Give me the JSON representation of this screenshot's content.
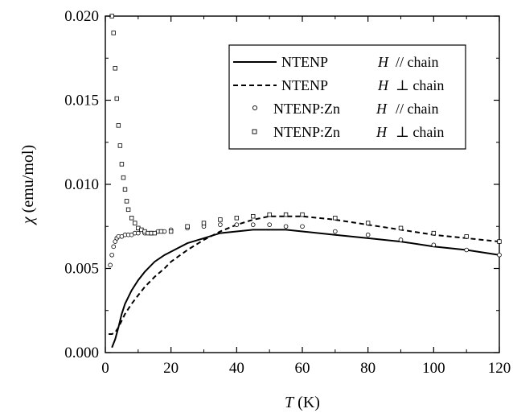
{
  "chart_data": {
    "type": "line",
    "xlabel": {
      "symbol": "T",
      "unit": " (K)"
    },
    "ylabel": {
      "symbol": "χ",
      "unit": " (emu/mol)"
    },
    "xlim": [
      0,
      120
    ],
    "ylim": [
      0,
      0.02
    ],
    "xticks": [
      0,
      20,
      40,
      60,
      80,
      100,
      120
    ],
    "xtick_labels": [
      "0",
      "20",
      "40",
      "60",
      "80",
      "100",
      "120"
    ],
    "yticks": [
      0,
      0.005,
      0.01,
      0.015,
      0.02
    ],
    "ytick_labels": [
      "0.000",
      "0.005",
      "0.010",
      "0.015",
      "0.020"
    ],
    "grid": false,
    "legend_position": "top-right",
    "series": [
      {
        "name": "NTENP",
        "field": "H",
        "direction": "// chain",
        "style": "solid",
        "x": [
          2,
          3,
          4,
          5,
          6,
          8,
          10,
          12,
          15,
          18,
          20,
          25,
          30,
          35,
          40,
          45,
          50,
          55,
          60,
          70,
          80,
          90,
          100,
          110,
          120
        ],
        "y": [
          0.0003,
          0.0008,
          0.0015,
          0.0023,
          0.0029,
          0.0037,
          0.0043,
          0.0048,
          0.0054,
          0.0058,
          0.006,
          0.0065,
          0.0068,
          0.0071,
          0.0072,
          0.0073,
          0.0073,
          0.0073,
          0.0072,
          0.007,
          0.0068,
          0.0066,
          0.0063,
          0.0061,
          0.0058
        ]
      },
      {
        "name": "NTENP",
        "field": "H",
        "direction": "⊥ chain",
        "style": "dashed",
        "x": [
          1,
          2,
          3,
          4,
          5,
          6,
          8,
          10,
          12,
          15,
          18,
          20,
          25,
          30,
          35,
          40,
          45,
          50,
          55,
          60,
          70,
          80,
          90,
          100,
          110,
          120
        ],
        "y": [
          0.0011,
          0.0011,
          0.0012,
          0.0015,
          0.0019,
          0.0023,
          0.0029,
          0.0034,
          0.0039,
          0.0045,
          0.005,
          0.0054,
          0.0061,
          0.0067,
          0.0072,
          0.0076,
          0.0079,
          0.0081,
          0.0081,
          0.0081,
          0.0079,
          0.0076,
          0.0073,
          0.007,
          0.0068,
          0.0066
        ]
      },
      {
        "name": "NTENP:Zn",
        "field": "H",
        "direction": "// chain",
        "style": "circle",
        "x": [
          1.5,
          2,
          2.5,
          3,
          3.5,
          4,
          5,
          6,
          7,
          8,
          9,
          10,
          12,
          14,
          16,
          18,
          20,
          25,
          30,
          35,
          40,
          45,
          50,
          55,
          60,
          70,
          80,
          90,
          100,
          110,
          120
        ],
        "y": [
          0.0052,
          0.0058,
          0.0063,
          0.0066,
          0.0068,
          0.0069,
          0.0069,
          0.007,
          0.007,
          0.007,
          0.0071,
          0.0071,
          0.0071,
          0.0071,
          0.0072,
          0.0072,
          0.0073,
          0.0074,
          0.0075,
          0.0076,
          0.0076,
          0.0076,
          0.0076,
          0.0075,
          0.0075,
          0.0072,
          0.007,
          0.0067,
          0.0064,
          0.0061,
          0.0058
        ]
      },
      {
        "name": "NTENP:Zn",
        "field": "H",
        "direction": "⊥ chain",
        "style": "square",
        "x": [
          2,
          2.5,
          3,
          3.5,
          4,
          4.5,
          5,
          5.5,
          6,
          6.5,
          7,
          8,
          9,
          10,
          11,
          12,
          13,
          14,
          15,
          17,
          20,
          25,
          30,
          35,
          40,
          45,
          50,
          55,
          60,
          70,
          80,
          90,
          100,
          110,
          120
        ],
        "y": [
          0.02,
          0.019,
          0.0169,
          0.0151,
          0.0135,
          0.0123,
          0.0112,
          0.0104,
          0.0097,
          0.009,
          0.0085,
          0.008,
          0.0077,
          0.0074,
          0.0073,
          0.0072,
          0.0071,
          0.0071,
          0.0071,
          0.0072,
          0.0072,
          0.0075,
          0.0077,
          0.0079,
          0.008,
          0.0081,
          0.0082,
          0.0082,
          0.0082,
          0.008,
          0.0077,
          0.0074,
          0.0071,
          0.0069,
          0.0066
        ]
      }
    ]
  }
}
